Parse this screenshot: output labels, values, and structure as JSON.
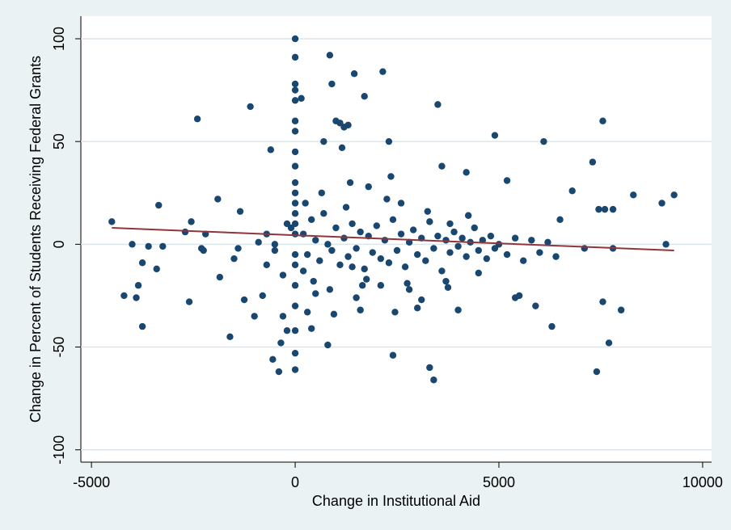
{
  "chart_data": {
    "type": "scatter",
    "xlabel": "Change in Institutional Aid",
    "ylabel": "Change in Percent of Students Receiving Federal Grants",
    "xlim": [
      -5260,
      10220
    ],
    "ylim": [
      -106,
      111
    ],
    "xticks": [
      -5000,
      0,
      5000,
      10000
    ],
    "yticks": [
      -100,
      -50,
      0,
      50,
      100
    ],
    "grid": true,
    "series": [
      {
        "color": "#1a476f",
        "mode": "markers",
        "x": [
          -4500,
          -4200,
          -4000,
          -3900,
          -3850,
          -3750,
          -3750,
          -3600,
          -3400,
          -3350,
          -3250,
          -2700,
          -2600,
          -2550,
          -2400,
          -2300,
          -2250,
          -2200,
          -1900,
          -1850,
          -1600,
          -1500,
          -1400,
          -1350,
          -1250,
          -1100,
          -1000,
          -900,
          -800,
          -700,
          -600,
          -550,
          -500,
          -400,
          -350,
          -300,
          -200,
          -100,
          0,
          0,
          0,
          0,
          0,
          0,
          0,
          0,
          0,
          0,
          0,
          0,
          0,
          0,
          0,
          0,
          0,
          0,
          0,
          0,
          0,
          0,
          150,
          200,
          300,
          400,
          500,
          700,
          800,
          850,
          900,
          950,
          1000,
          1100,
          1150,
          1200,
          1300,
          1400,
          1450,
          1500,
          1600,
          1700,
          1800,
          2100,
          2150,
          2300,
          2400,
          2450,
          2600,
          2800,
          3000,
          3100,
          3300,
          3400,
          3500,
          3600,
          3700,
          3800,
          4000,
          4200,
          4500,
          4900,
          5200,
          5400,
          5500,
          5900,
          6100,
          6300,
          6500,
          6800,
          7100,
          7300,
          7400,
          7450,
          7550,
          7550,
          7600,
          7700,
          7800,
          7800,
          8000,
          8300,
          9000,
          9100,
          9300,
          200,
          300,
          400,
          500,
          600,
          700,
          800,
          900,
          1000,
          1100,
          1200,
          1300,
          1400,
          1500,
          1600,
          1700,
          1800,
          1900,
          2000,
          2100,
          2200,
          2300,
          2400,
          2500,
          2600,
          2700,
          2800,
          2900,
          3000,
          3100,
          3200,
          3300,
          3400,
          3500,
          3600,
          3700,
          3800,
          3900,
          4000,
          4100,
          4200,
          4300,
          4400,
          4500,
          4600,
          4700,
          4800,
          4900,
          5000,
          5200,
          5400,
          5600,
          5800,
          6000,
          6200,
          6400,
          -200,
          -300,
          -500,
          -700,
          250,
          450,
          650,
          1250,
          1750,
          2250,
          2750,
          3250,
          3750,
          4250,
          1350,
          2350,
          850,
          1650
        ],
        "values": [
          11,
          -25,
          0,
          -26,
          -20,
          -9,
          -40,
          -1,
          -12,
          19,
          -1,
          6,
          -28,
          11,
          61,
          -2,
          -3,
          5,
          22,
          -16,
          -45,
          -7,
          -2,
          16,
          -27,
          67,
          -35,
          1,
          -25,
          5,
          46,
          -56,
          -3,
          -62,
          -48,
          -35,
          -42,
          8,
          100,
          91,
          78,
          75,
          70,
          60,
          55,
          45,
          38,
          30,
          25,
          20,
          15,
          10,
          5,
          -5,
          -10,
          -20,
          -30,
          -42,
          -53,
          -61,
          71,
          -13,
          -33,
          -41,
          -24,
          50,
          -49,
          92,
          78,
          -34,
          60,
          59,
          47,
          57,
          58,
          -11,
          83,
          -26,
          -32,
          72,
          28,
          -20,
          84,
          50,
          -54,
          -33,
          20,
          -22,
          -31,
          -27,
          -60,
          -66,
          68,
          38,
          -18,
          10,
          -32,
          35,
          -14,
          53,
          31,
          -26,
          -25,
          -30,
          50,
          -40,
          12,
          26,
          -2,
          40,
          -62,
          17,
          60,
          -28,
          17,
          -48,
          -2,
          17,
          -32,
          24,
          20,
          0,
          24,
          5,
          -5,
          12,
          2,
          -8,
          15,
          0,
          -3,
          8,
          -10,
          3,
          -6,
          10,
          -2,
          6,
          -12,
          4,
          -4,
          9,
          -7,
          2,
          -9,
          12,
          -3,
          5,
          -11,
          1,
          7,
          -5,
          3,
          -8,
          11,
          -2,
          4,
          -13,
          2,
          -4,
          6,
          -1,
          3,
          -6,
          1,
          8,
          -3,
          2,
          -7,
          4,
          -2,
          0,
          -5,
          3,
          -8,
          2,
          -4,
          1,
          -6,
          10,
          -15,
          0,
          -10,
          20,
          -18,
          25,
          18,
          -17,
          22,
          -19,
          16,
          -21,
          14,
          30,
          33,
          -22,
          -20
        ]
      },
      {
        "color": "#90353b",
        "mode": "line",
        "x": [
          -4500,
          9300
        ],
        "values": [
          8,
          -3
        ]
      }
    ]
  }
}
